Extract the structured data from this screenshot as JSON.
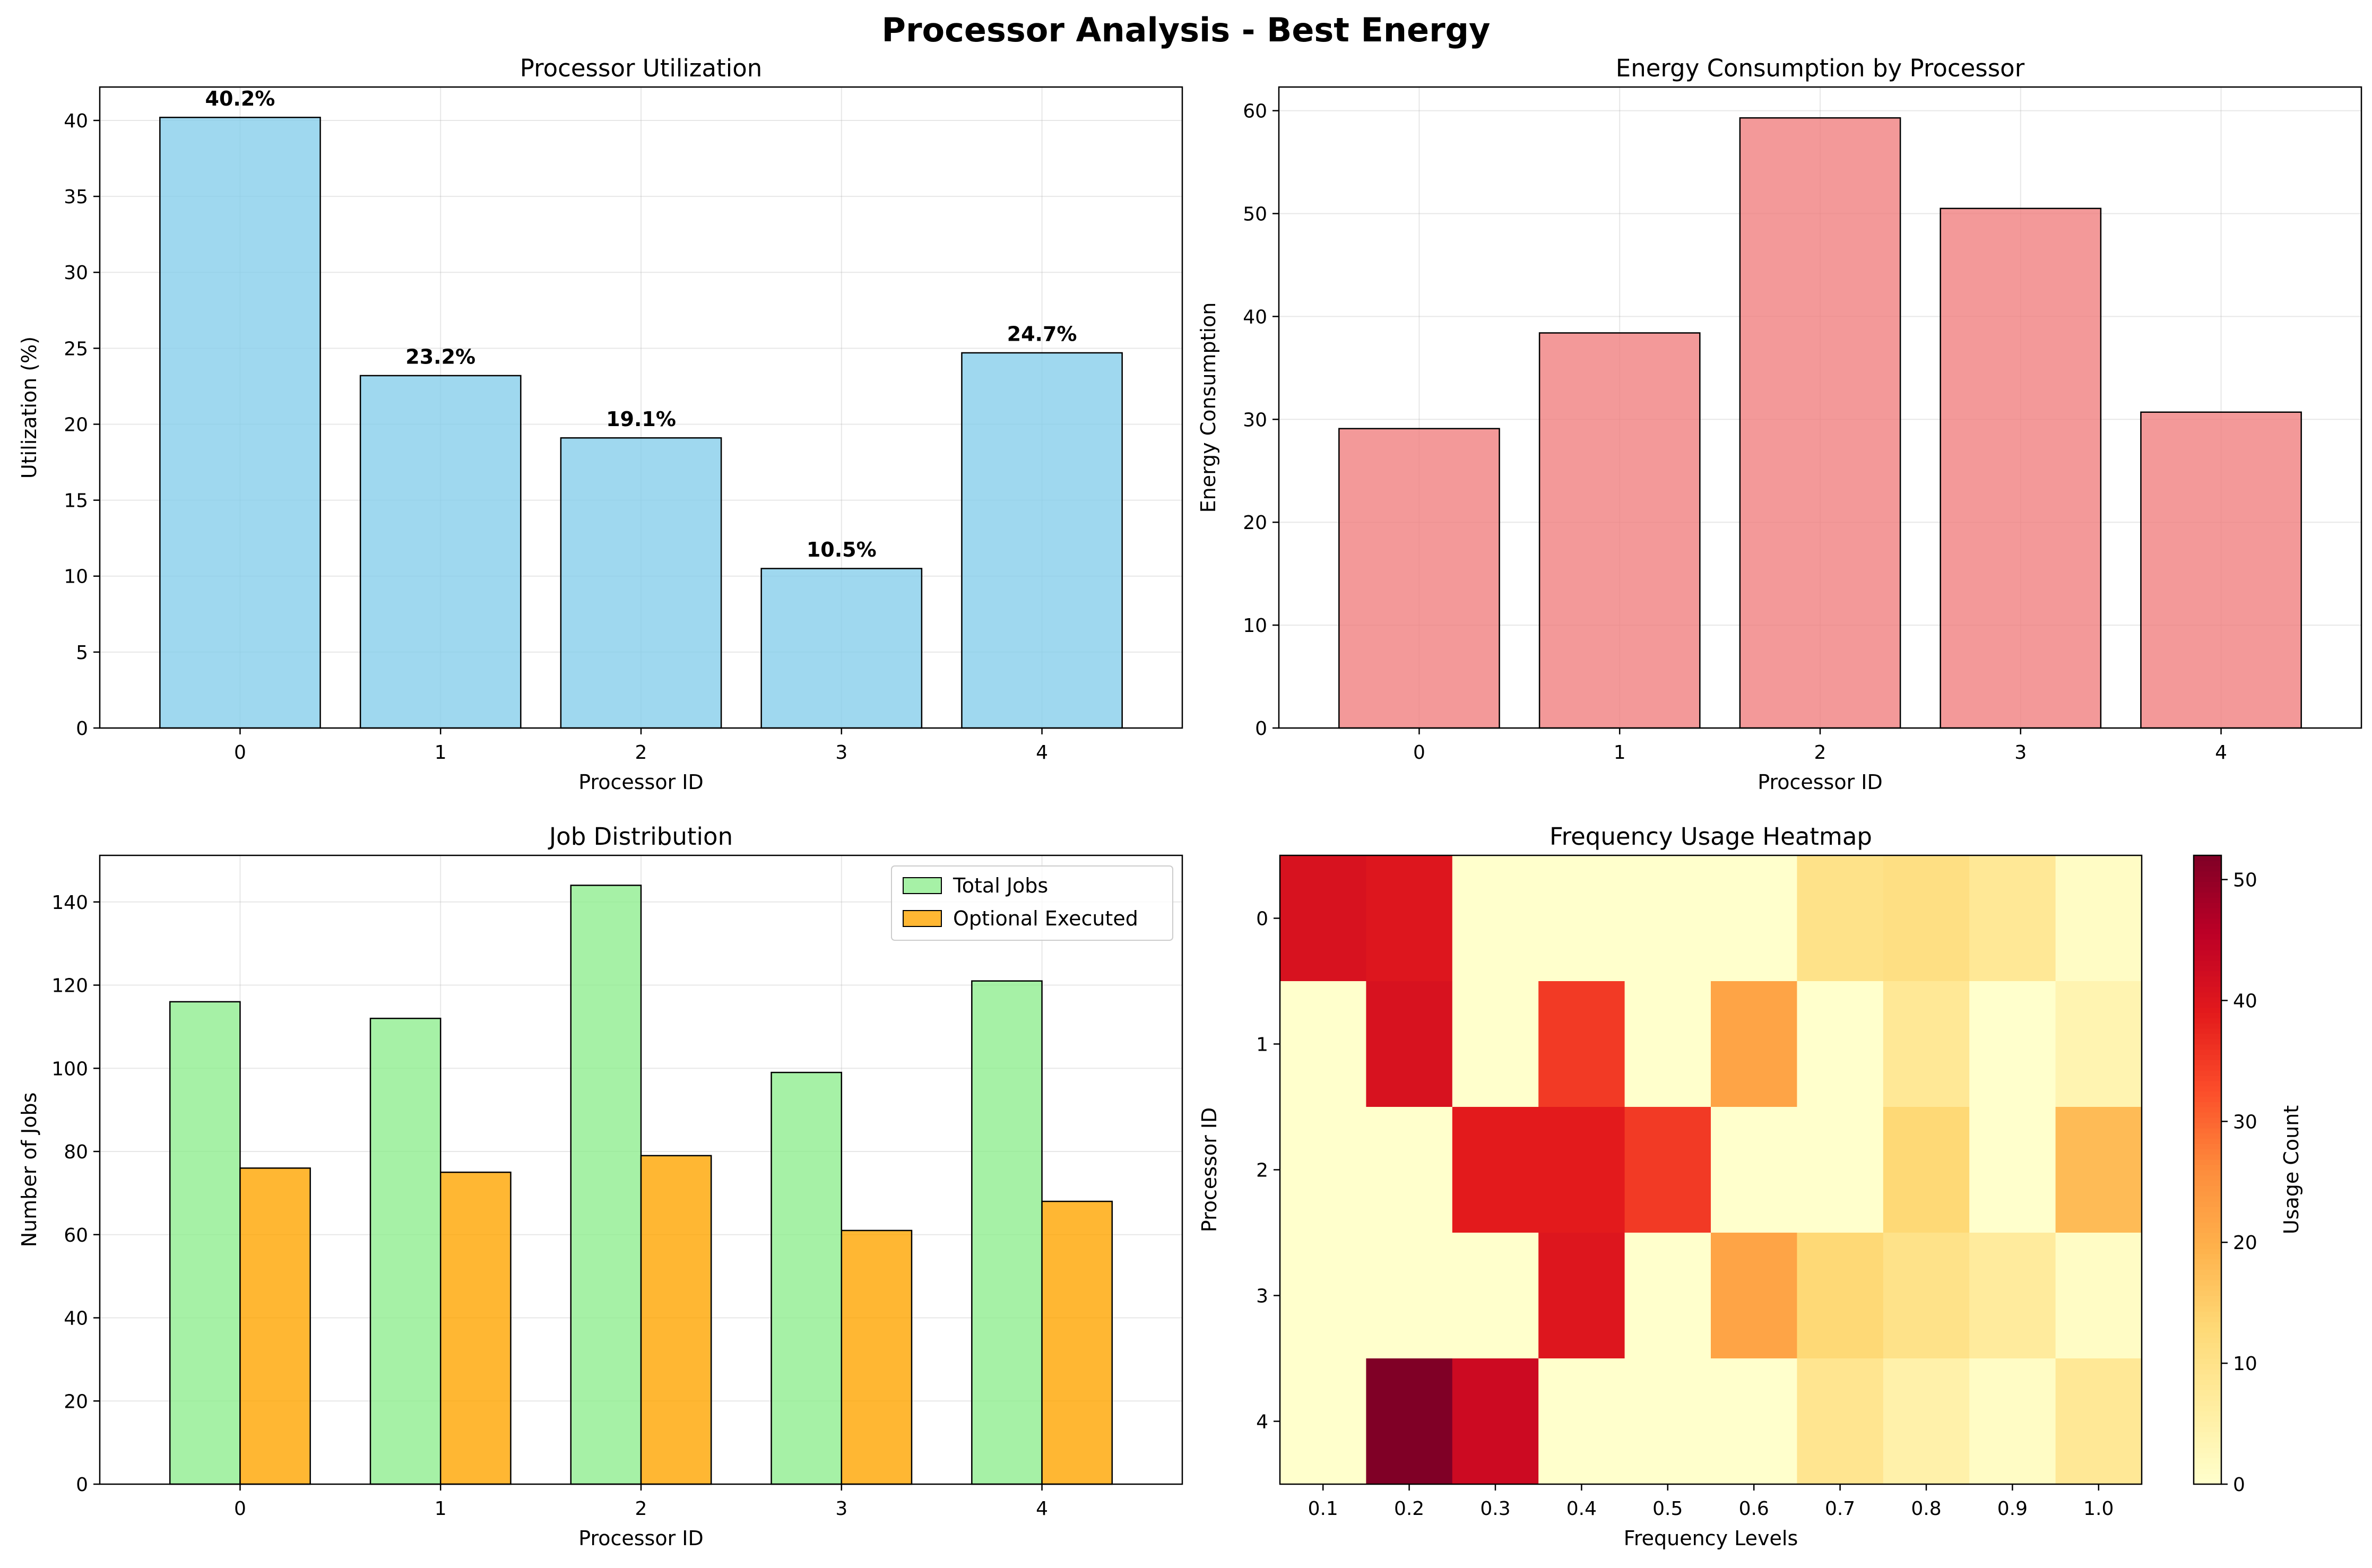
{
  "figure": {
    "suptitle": "Processor Analysis - Best Energy"
  },
  "chart_data": [
    {
      "type": "bar",
      "title": "Processor Utilization",
      "xlabel": "Processor ID",
      "ylabel": "Utilization (%)",
      "categories": [
        "0",
        "1",
        "2",
        "3",
        "4"
      ],
      "values": [
        40.2,
        23.2,
        19.1,
        10.5,
        24.7
      ],
      "data_labels": [
        "40.2%",
        "23.2%",
        "19.1%",
        "10.5%",
        "24.7%"
      ],
      "ylim": [
        0,
        42.2
      ],
      "yticks": [
        0,
        5,
        10,
        15,
        20,
        25,
        30,
        35,
        40
      ],
      "grid": true,
      "color": "#87ceeb"
    },
    {
      "type": "bar",
      "title": "Energy Consumption by Processor",
      "xlabel": "Processor ID",
      "ylabel": "Energy Consumption",
      "categories": [
        "0",
        "1",
        "2",
        "3",
        "4"
      ],
      "values": [
        29.1,
        38.4,
        59.3,
        50.5,
        30.7
      ],
      "ylim": [
        0,
        62.3
      ],
      "yticks": [
        0,
        10,
        20,
        30,
        40,
        50,
        60
      ],
      "grid": true,
      "color": "#f08080"
    },
    {
      "type": "bar",
      "title": "Job Distribution",
      "xlabel": "Processor ID",
      "ylabel": "Number of Jobs",
      "categories": [
        "0",
        "1",
        "2",
        "3",
        "4"
      ],
      "series": [
        {
          "name": "Total Jobs",
          "values": [
            116,
            112,
            144,
            99,
            121
          ],
          "color": "#90ee90"
        },
        {
          "name": "Optional Executed",
          "values": [
            76,
            75,
            79,
            61,
            68
          ],
          "color": "#ffa500"
        }
      ],
      "ylim": [
        0,
        151.2
      ],
      "yticks": [
        0,
        20,
        40,
        60,
        80,
        100,
        120,
        140
      ],
      "legend": "top-right",
      "grid": true
    },
    {
      "type": "heatmap",
      "title": "Frequency Usage Heatmap",
      "xlabel": "Frequency Levels",
      "ylabel": "Processor ID",
      "x": [
        "0.1",
        "0.2",
        "0.3",
        "0.4",
        "0.5",
        "0.6",
        "0.7",
        "0.8",
        "0.9",
        "1.0"
      ],
      "y": [
        "0",
        "1",
        "2",
        "3",
        "4"
      ],
      "values": [
        [
          41,
          40,
          0,
          0,
          0,
          0,
          10,
          11,
          8,
          1
        ],
        [
          0,
          41,
          0,
          35,
          0,
          22,
          0,
          8,
          0,
          4
        ],
        [
          0,
          0,
          39,
          39,
          35,
          0,
          0,
          13,
          0,
          18
        ],
        [
          0,
          0,
          0,
          40,
          0,
          22,
          13,
          10,
          7,
          1
        ],
        [
          0,
          52,
          43,
          0,
          0,
          0,
          9,
          5,
          1,
          8
        ]
      ],
      "colorbar": {
        "label": "Usage Count",
        "min": 0,
        "max": 52,
        "ticks": [
          0,
          10,
          20,
          30,
          40,
          50
        ],
        "colormap": "YlOrRd"
      }
    }
  ]
}
